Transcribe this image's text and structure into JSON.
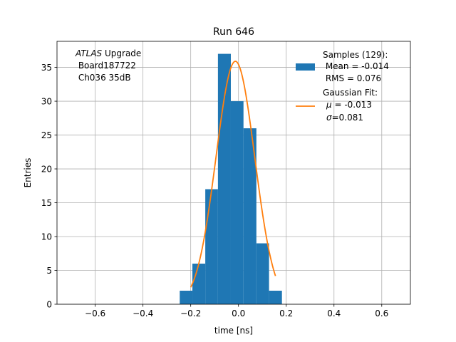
{
  "chart_data": {
    "type": "bar",
    "title": "Run 646",
    "xlabel": "time [ns]",
    "ylabel": "Entries",
    "xlim": [
      -0.76,
      0.72
    ],
    "ylim": [
      0,
      38.85
    ],
    "xticks": [
      -0.6,
      -0.4,
      -0.2,
      0.0,
      0.2,
      0.4,
      0.6
    ],
    "xtick_labels": [
      "−0.6",
      "−0.4",
      "−0.2",
      "0.0",
      "0.2",
      "0.4",
      "0.6"
    ],
    "yticks": [
      0,
      5,
      10,
      15,
      20,
      25,
      30,
      35
    ],
    "ytick_labels": [
      "0",
      "5",
      "10",
      "15",
      "20",
      "25",
      "30",
      "35"
    ],
    "grid": true,
    "legend_position": "top-right",
    "colors": {
      "histogram": "#1f77b4",
      "fit": "#ff7f0e"
    },
    "histogram": {
      "bins": [
        {
          "x0": -0.246,
          "x1": -0.193,
          "count": 2
        },
        {
          "x0": -0.193,
          "x1": -0.139,
          "count": 6
        },
        {
          "x0": -0.139,
          "x1": -0.086,
          "count": 17
        },
        {
          "x0": -0.086,
          "x1": -0.032,
          "count": 37
        },
        {
          "x0": -0.032,
          "x1": 0.021,
          "count": 30
        },
        {
          "x0": 0.021,
          "x1": 0.075,
          "count": 26
        },
        {
          "x0": 0.075,
          "x1": 0.128,
          "count": 9
        },
        {
          "x0": 0.128,
          "x1": 0.182,
          "count": 2
        }
      ]
    },
    "gaussian_fit": {
      "mu": -0.013,
      "sigma": 0.081,
      "amplitude": 35.9,
      "x_range": [
        -0.2,
        0.155
      ]
    },
    "legend": {
      "samples_lines": [
        "Samples (129):",
        " Mean = -0.014",
        " RMS = 0.076"
      ],
      "fit_title": "Gaussian Fit:",
      "fit_mu_symbol": "μ",
      "fit_mu_text": " = -0.013",
      "fit_sigma_symbol": "σ",
      "fit_sigma_text": "=0.081"
    },
    "annotation": {
      "italic": "ATLAS",
      "rest": " Upgrade",
      "line2": " Board187722",
      "line3": " Ch036 35dB"
    }
  }
}
